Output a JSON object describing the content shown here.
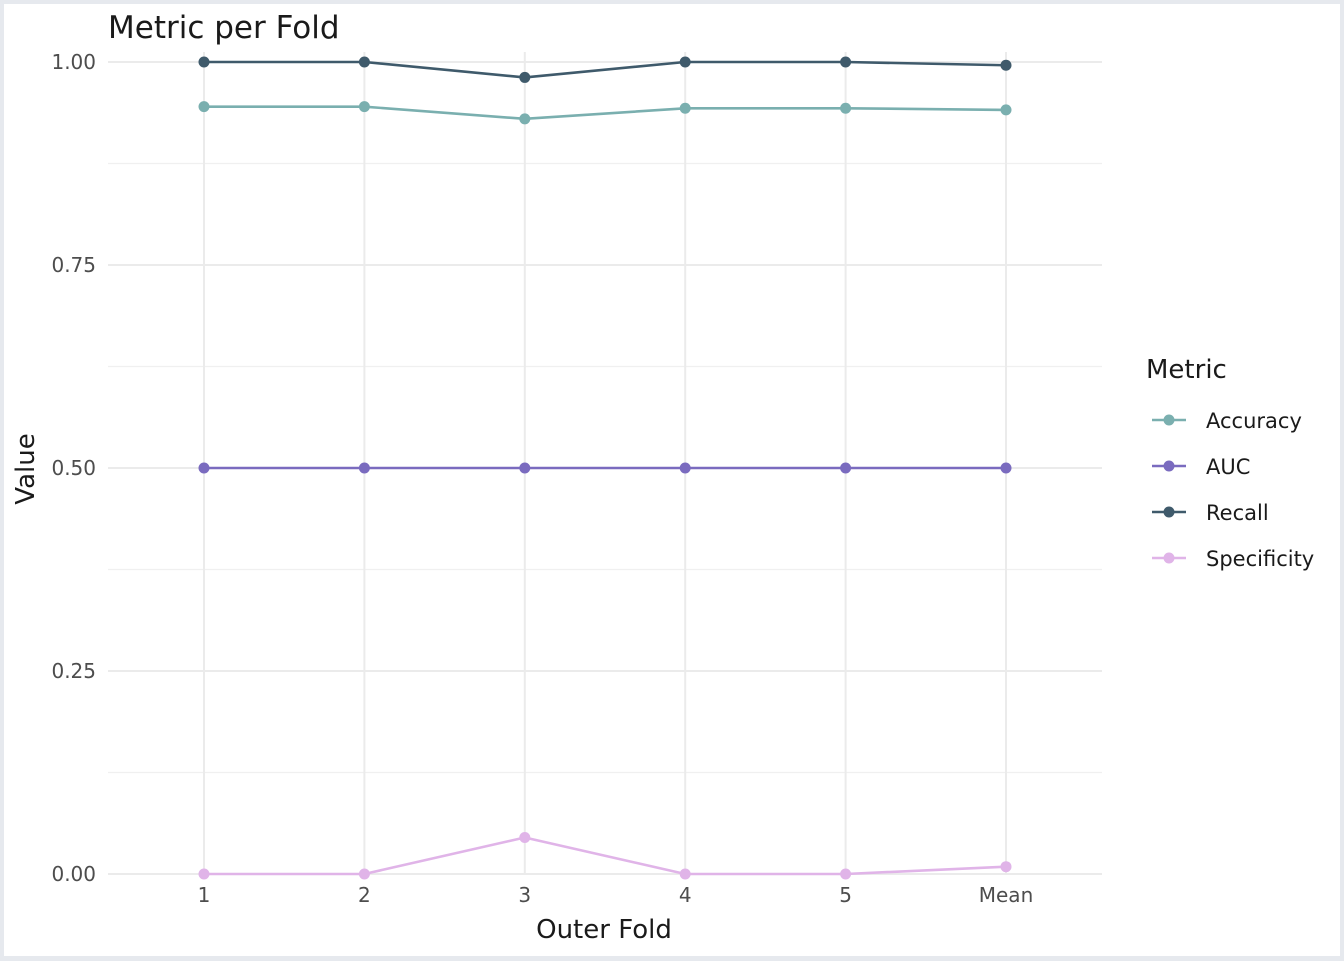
{
  "chart_data": {
    "type": "line",
    "title": "Metric per Fold",
    "xlabel": "Outer Fold",
    "ylabel": "Value",
    "categories": [
      "1",
      "2",
      "3",
      "4",
      "5",
      "Mean"
    ],
    "ylim": [
      0,
      1
    ],
    "yticks": [
      "0.00",
      "0.25",
      "0.50",
      "0.75",
      "1.00"
    ],
    "grid": true,
    "legend": {
      "title": "Metric",
      "position": "right"
    },
    "series": [
      {
        "name": "Accuracy",
        "color": "#7aafaf",
        "values": [
          0.945,
          0.945,
          0.93,
          0.943,
          0.943,
          0.941
        ]
      },
      {
        "name": "AUC",
        "color": "#7a6bbf",
        "values": [
          0.5,
          0.5,
          0.5,
          0.5,
          0.5,
          0.5
        ]
      },
      {
        "name": "Recall",
        "color": "#3f5a6b",
        "values": [
          1.0,
          1.0,
          0.981,
          1.0,
          1.0,
          0.996
        ]
      },
      {
        "name": "Specificity",
        "color": "#e0b4e8",
        "values": [
          0.0,
          0.0,
          0.045,
          0.0,
          0.0,
          0.009
        ]
      }
    ]
  }
}
